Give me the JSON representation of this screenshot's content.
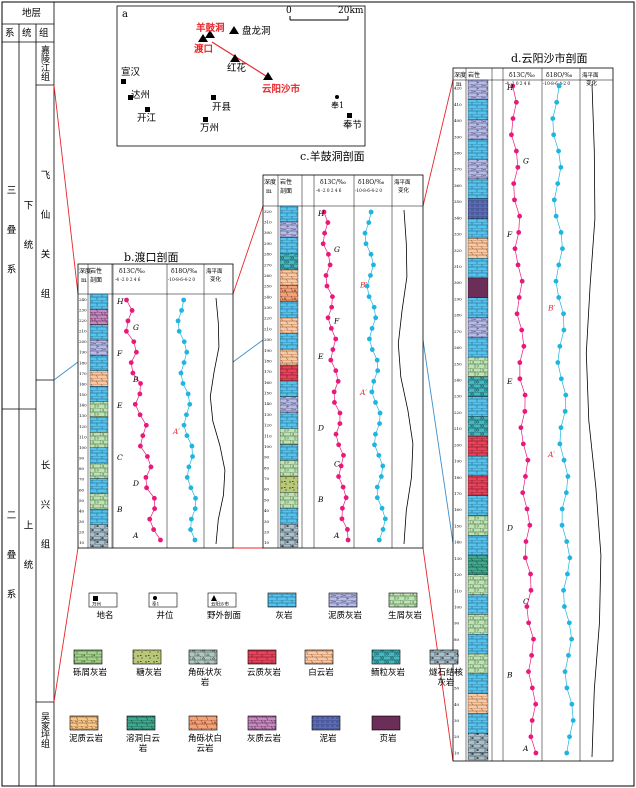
{
  "strat_header": {
    "title": "地层",
    "system": "系",
    "series": "统",
    "formation": "组"
  },
  "strat_units": {
    "jialingjiang": "嘉陵江组",
    "triassic": "三叠系",
    "lower": "下统",
    "feixianguan": "飞仙关组",
    "permian": "二叠系",
    "upper": "上统",
    "changxing": "长兴组",
    "wujiaping": "吴家坪组"
  },
  "map": {
    "label": "a",
    "scale_zero": "0",
    "scale_end": "20km",
    "places": {
      "yanggudong": "羊鼓洞",
      "panlongdong": "盘龙洞",
      "dukou": "渡口",
      "honghua": "红花",
      "yunyang": "云阳沙市",
      "xuanhan": "宣汉",
      "dazhou": "达州",
      "kaijiang": "开江",
      "kaixian": "开县",
      "wanzhou": "万州",
      "feng1": "奉1",
      "fengjie": "奉节"
    }
  },
  "sections": {
    "b": {
      "title": "b.渡口剖面",
      "ticks": [
        "240",
        "230",
        "220",
        "210",
        "200",
        "190",
        "180",
        "170",
        "160",
        "150",
        "140",
        "130",
        "120",
        "110",
        "100",
        "90",
        "80",
        "70",
        "60",
        "50",
        "40",
        "30",
        "20",
        "10"
      ],
      "labels": [
        "H",
        "G",
        "F",
        "B",
        "E",
        "A′",
        "C",
        "D",
        "B",
        "A"
      ]
    },
    "c": {
      "title": "c.羊鼓洞剖面",
      "ticks": [
        "320",
        "310",
        "300",
        "290",
        "280",
        "270",
        "260",
        "250",
        "240",
        "230",
        "220",
        "210",
        "200",
        "190",
        "180",
        "170",
        "160",
        "150",
        "140",
        "130",
        "120",
        "110",
        "100",
        "90",
        "80",
        "70",
        "60",
        "50",
        "40",
        "30",
        "20",
        "10"
      ],
      "labels": [
        "H",
        "G",
        "B′",
        "F",
        "E",
        "A′",
        "D",
        "C",
        "B",
        "A"
      ]
    },
    "d": {
      "title": "d.云阳沙市剖面",
      "ticks": [
        "420",
        "410",
        "400",
        "390",
        "380",
        "370",
        "360",
        "350",
        "340",
        "330",
        "320",
        "310",
        "300",
        "290",
        "280",
        "270",
        "260",
        "250",
        "240",
        "230",
        "220",
        "210",
        "200",
        "190",
        "180",
        "170",
        "160",
        "150",
        "140",
        "130",
        "120",
        "110",
        "100",
        "90",
        "80",
        "70",
        "60",
        "50",
        "40",
        "30",
        "20",
        "10"
      ],
      "labels": [
        "H",
        "G",
        "F",
        "B′",
        "E",
        "A′",
        "D",
        "C",
        "B",
        "A"
      ]
    }
  },
  "col_headers": {
    "depth": "深度",
    "depth_unit": "m",
    "litho": "岩性",
    "profile": "剖面",
    "d13c": "δ13C/‰",
    "d18o": "δ18O/‰",
    "sealevel": "海平面变化",
    "c_scale": "-4 -2 0 2 4 6",
    "o_scale": "-10-8-6-4-2 0"
  },
  "legend": [
    {
      "id": "place",
      "label": "地名",
      "sym": "万州"
    },
    {
      "id": "well",
      "label": "井位",
      "sym": "奉1"
    },
    {
      "id": "outcrop",
      "label": "野外剖面",
      "sym": "云阳沙市"
    },
    {
      "id": "limestone",
      "label": "灰岩"
    },
    {
      "id": "marly_ls",
      "label": "泥质灰岩"
    },
    {
      "id": "bio_ls",
      "label": "生屑灰岩"
    },
    {
      "id": "rud_ls",
      "label": "砾屑灰岩"
    },
    {
      "id": "sugar_ls",
      "label": "糖灰岩"
    },
    {
      "id": "breccia_ls",
      "label": "角砾状灰岩"
    },
    {
      "id": "dol_ls",
      "label": "云质灰岩"
    },
    {
      "id": "dolomite",
      "label": "白云岩"
    },
    {
      "id": "oolitic",
      "label": "鲕粒灰岩"
    },
    {
      "id": "flint",
      "label": "燧石结核灰岩"
    },
    {
      "id": "marly_dol",
      "label": "泥质云岩"
    },
    {
      "id": "dissol_dol",
      "label": "溶洞白云岩"
    },
    {
      "id": "breccia_dol",
      "label": "角砾状白云岩"
    },
    {
      "id": "calc_dol",
      "label": "灰质云岩"
    },
    {
      "id": "mudstone",
      "label": "泥岩"
    },
    {
      "id": "shale",
      "label": "页岩"
    }
  ],
  "colors": {
    "limestone": "#58c3ea",
    "marly_ls": "#b9bce0",
    "bio_ls": "#bfe1b3",
    "rud_ls": "#a7d08c",
    "sugar_ls": "#b8c877",
    "breccia_ls": "#b1c8b8",
    "dol_ls": "#e8435a",
    "dolomite": "#f7c9a5",
    "oolitic": "#42b9bd",
    "flint": "#a9bfc8",
    "marly_dol": "#f5c88f",
    "dissol_dol": "#40a88e",
    "breccia_dol": "#f0a27a",
    "calc_dol": "#c58bbd",
    "mudstone": "#5c6db6",
    "shale": "#7f3a6a",
    "carbon": "#e8197a",
    "oxygen": "#1fb5e0",
    "correlation_red": "#e8262a",
    "correlation_blue": "#3a8fd0"
  }
}
